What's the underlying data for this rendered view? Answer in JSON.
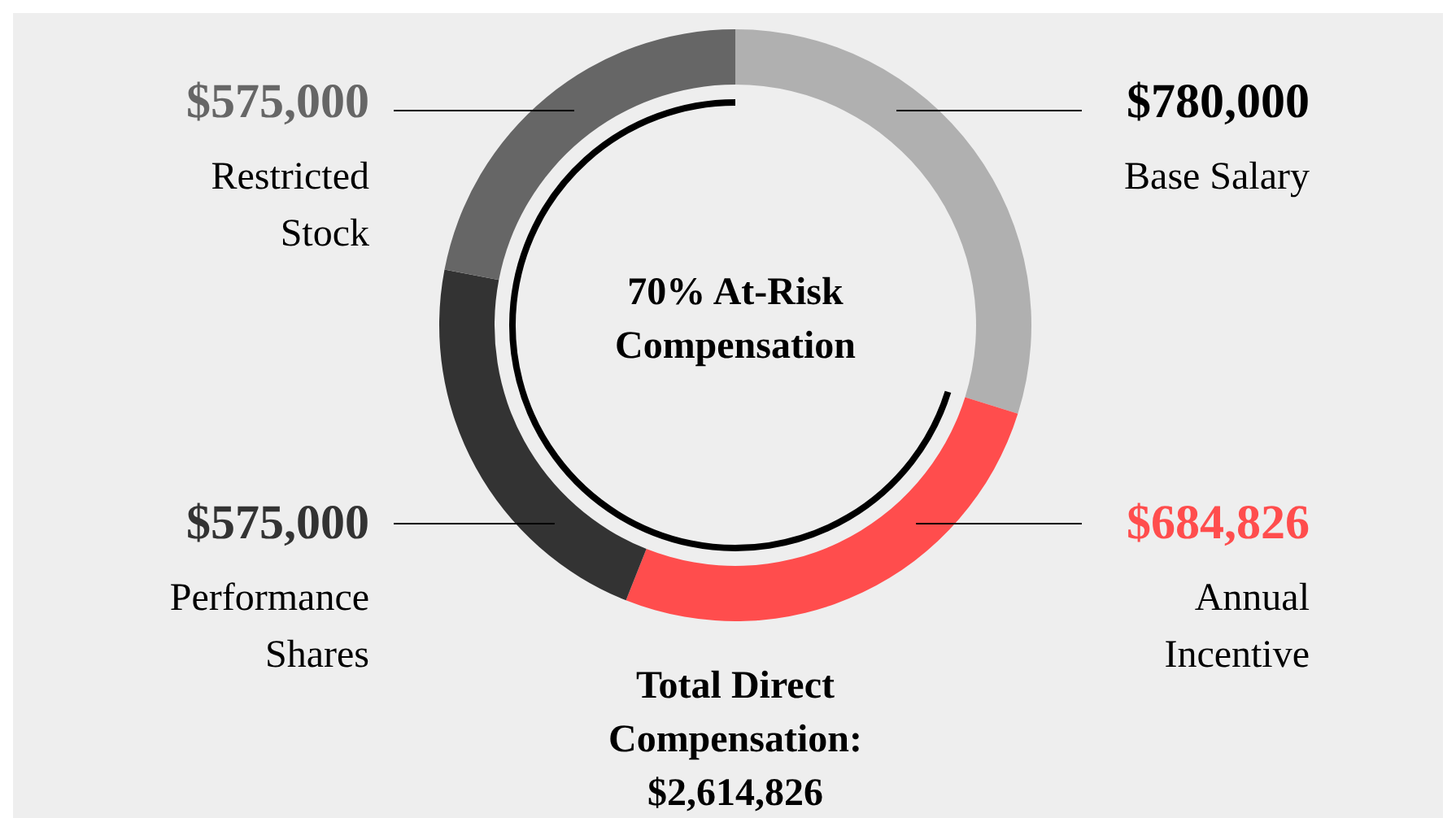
{
  "chart_data": {
    "type": "donut",
    "categories": [
      "Base Salary",
      "Annual Incentive",
      "Performance Shares",
      "Restricted Stock"
    ],
    "values": [
      780000,
      684826,
      575000,
      575000
    ],
    "colors": [
      "#b0b0b0",
      "#ff4d4d",
      "#333333",
      "#666666"
    ],
    "value_labels": [
      "$780,000",
      "$684,826",
      "$575,000",
      "$575,000"
    ],
    "annotations": [
      "70% At-Risk Compensation",
      "Total Direct Compensation: $2,614,826"
    ]
  }
}
